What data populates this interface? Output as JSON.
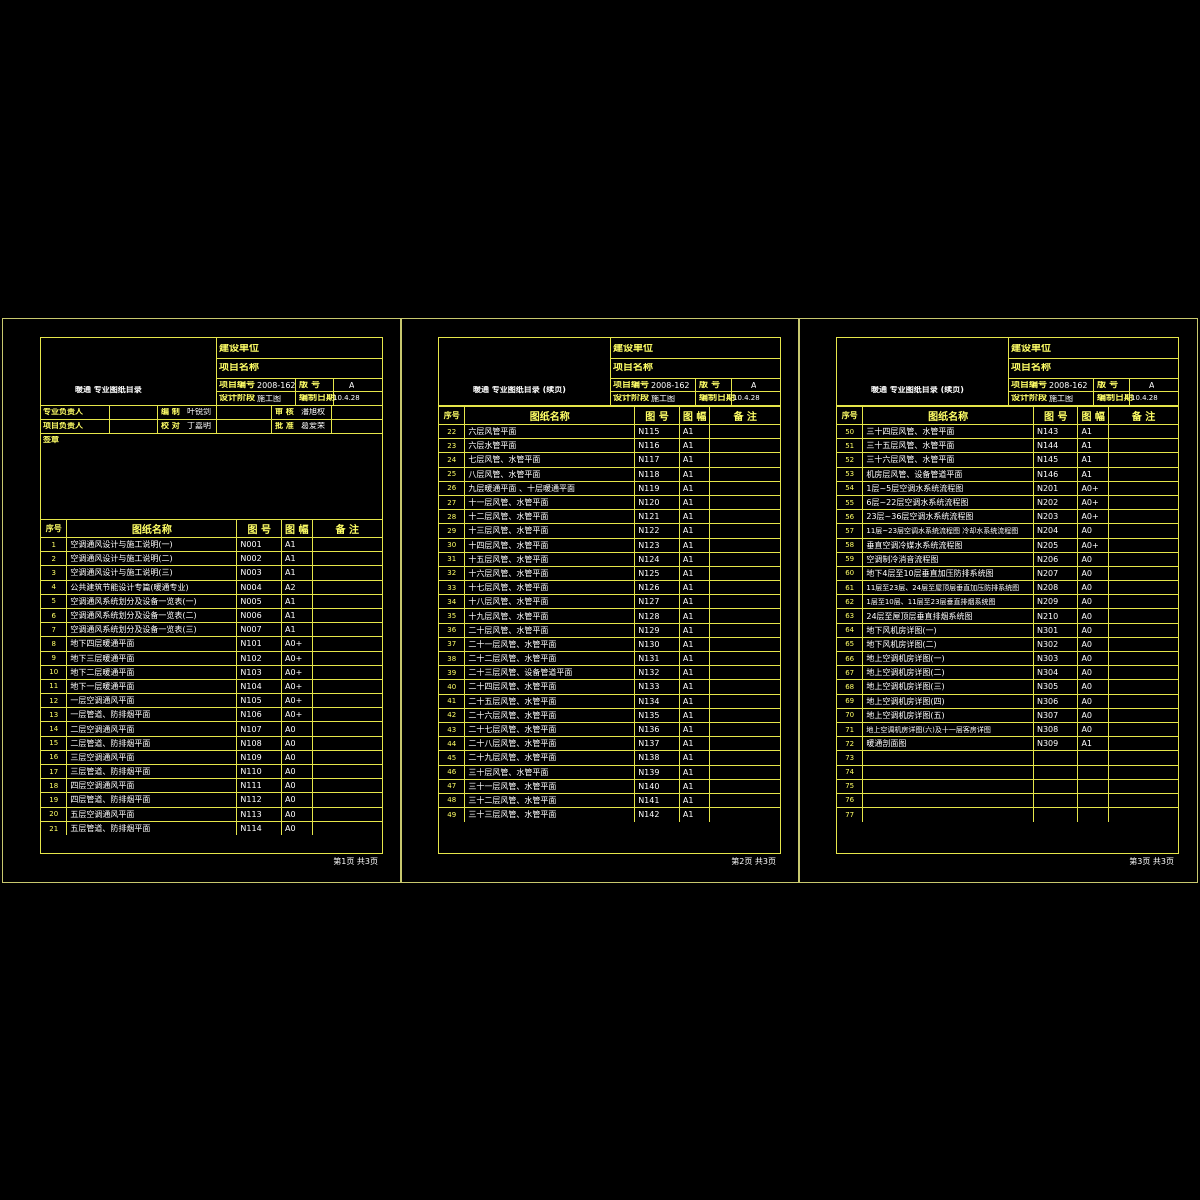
{
  "sheets": [
    {
      "construction_unit": "建设单位",
      "project_name": "项目名称",
      "title": "暖通   专业图纸目录",
      "project_no_label": "项目编号",
      "project_no": "2008-162",
      "version_label": "版   号",
      "version": "A",
      "design_stage_label": "设计阶段",
      "design_stage": "施工图",
      "date_label": "编制日期",
      "date": "10.4.28",
      "people": {
        "r1": [
          "专业负责人",
          "",
          "编   制",
          "叶锐剑",
          "审   核",
          "潘旭权"
        ],
        "r2": [
          "项目负责人",
          "",
          "校   对",
          "丁嘉明",
          "批   准",
          "葛爱荣"
        ]
      },
      "sign_label": "签章",
      "headers": [
        "序号",
        "图纸名称",
        "图 号",
        "图 幅",
        "备 注"
      ],
      "rows": [
        [
          "1",
          "空调通风设计与施工说明(一)",
          "N001",
          "A1"
        ],
        [
          "2",
          "空调通风设计与施工说明(二)",
          "N002",
          "A1"
        ],
        [
          "3",
          "空调通风设计与施工说明(三)",
          "N003",
          "A1"
        ],
        [
          "4",
          "公共建筑节能设计专篇(暖通专业)",
          "N004",
          "A2"
        ],
        [
          "5",
          "空调通风系统划分及设备一览表(一)",
          "N005",
          "A1"
        ],
        [
          "6",
          "空调通风系统划分及设备一览表(二)",
          "N006",
          "A1"
        ],
        [
          "7",
          "空调通风系统划分及设备一览表(三)",
          "N007",
          "A1"
        ],
        [
          "8",
          "地下四层暖通平面",
          "N101",
          "A0+"
        ],
        [
          "9",
          "地下三层暖通平面",
          "N102",
          "A0+"
        ],
        [
          "10",
          "地下二层暖通平面",
          "N103",
          "A0+"
        ],
        [
          "11",
          "地下一层暖通平面",
          "N104",
          "A0+"
        ],
        [
          "12",
          "一层空调通风平面",
          "N105",
          "A0+"
        ],
        [
          "13",
          "一层管道、防排烟平面",
          "N106",
          "A0+"
        ],
        [
          "14",
          "二层空调通风平面",
          "N107",
          "A0"
        ],
        [
          "15",
          "二层管道、防排烟平面",
          "N108",
          "A0"
        ],
        [
          "16",
          "三层空调通风平面",
          "N109",
          "A0"
        ],
        [
          "17",
          "三层管道、防排烟平面",
          "N110",
          "A0"
        ],
        [
          "18",
          "四层空调通风平面",
          "N111",
          "A0"
        ],
        [
          "19",
          "四层管道、防排烟平面",
          "N112",
          "A0"
        ],
        [
          "20",
          "五层空调通风平面",
          "N113",
          "A0"
        ],
        [
          "21",
          "五层管道、防排烟平面",
          "N114",
          "A0"
        ]
      ],
      "footer": "第1页   共3页"
    },
    {
      "construction_unit": "建设单位",
      "project_name": "项目名称",
      "title": "暖通   专业图纸目录 (续页)",
      "project_no_label": "项目编号",
      "project_no": "2008-162",
      "version_label": "版   号",
      "version": "A",
      "design_stage_label": "设计阶段",
      "design_stage": "施工图",
      "date_label": "编制日期",
      "date": "10.4.28",
      "headers": [
        "序号",
        "图纸名称",
        "图 号",
        "图 幅",
        "备 注"
      ],
      "rows": [
        [
          "22",
          "六层风管平面",
          "N115",
          "A1"
        ],
        [
          "23",
          "六层水管平面",
          "N116",
          "A1"
        ],
        [
          "24",
          "七层风管、水管平面",
          "N117",
          "A1"
        ],
        [
          "25",
          "八层风管、水管平面",
          "N118",
          "A1"
        ],
        [
          "26",
          "九层暖通平面 、十层暖通平面",
          "N119",
          "A1"
        ],
        [
          "27",
          "十一层风管、水管平面",
          "N120",
          "A1"
        ],
        [
          "28",
          "十二层风管、水管平面",
          "N121",
          "A1"
        ],
        [
          "29",
          "十三层风管、水管平面",
          "N122",
          "A1"
        ],
        [
          "30",
          "十四层风管、水管平面",
          "N123",
          "A1"
        ],
        [
          "31",
          "十五层风管、水管平面",
          "N124",
          "A1"
        ],
        [
          "32",
          "十六层风管、水管平面",
          "N125",
          "A1"
        ],
        [
          "33",
          "十七层风管、水管平面",
          "N126",
          "A1"
        ],
        [
          "34",
          "十八层风管、水管平面",
          "N127",
          "A1"
        ],
        [
          "35",
          "十九层风管、水管平面",
          "N128",
          "A1"
        ],
        [
          "36",
          "二十层风管、水管平面",
          "N129",
          "A1"
        ],
        [
          "37",
          "二十一层风管、水管平面",
          "N130",
          "A1"
        ],
        [
          "38",
          "二十二层风管、水管平面",
          "N131",
          "A1"
        ],
        [
          "39",
          "二十三层风管、设备管道平面",
          "N132",
          "A1"
        ],
        [
          "40",
          "二十四层风管、水管平面",
          "N133",
          "A1"
        ],
        [
          "41",
          "二十五层风管、水管平面",
          "N134",
          "A1"
        ],
        [
          "42",
          "二十六层风管、水管平面",
          "N135",
          "A1"
        ],
        [
          "43",
          "二十七层风管、水管平面",
          "N136",
          "A1"
        ],
        [
          "44",
          "二十八层风管、水管平面",
          "N137",
          "A1"
        ],
        [
          "45",
          "二十九层风管、水管平面",
          "N138",
          "A1"
        ],
        [
          "46",
          "三十层风管、水管平面",
          "N139",
          "A1"
        ],
        [
          "47",
          "三十一层风管、水管平面",
          "N140",
          "A1"
        ],
        [
          "48",
          "三十二层风管、水管平面",
          "N141",
          "A1"
        ],
        [
          "49",
          "三十三层风管、水管平面",
          "N142",
          "A1"
        ]
      ],
      "footer": "第2页   共3页"
    },
    {
      "construction_unit": "建设单位",
      "project_name": "项目名称",
      "title": "暖通   专业图纸目录 (续页)",
      "project_no_label": "项目编号",
      "project_no": "2008-162",
      "version_label": "版   号",
      "version": "A",
      "design_stage_label": "设计阶段",
      "design_stage": "施工图",
      "date_label": "编制日期",
      "date": "10.4.28",
      "headers": [
        "序号",
        "图纸名称",
        "图 号",
        "图 幅",
        "备 注"
      ],
      "rows": [
        [
          "50",
          "三十四层风管、水管平面",
          "N143",
          "A1"
        ],
        [
          "51",
          "三十五层风管、水管平面",
          "N144",
          "A1"
        ],
        [
          "52",
          "三十六层风管、水管平面",
          "N145",
          "A1"
        ],
        [
          "53",
          "机房层风管、设备管道平面",
          "N146",
          "A1"
        ],
        [
          "54",
          "1层~5层空调水系统流程图",
          "N201",
          "A0+"
        ],
        [
          "55",
          "6层~22层空调水系统流程图",
          "N202",
          "A0+"
        ],
        [
          "56",
          "23层~36层空调水系统流程图",
          "N203",
          "A0+"
        ],
        [
          "57",
          "11层~23层空调水系统流程图 冷却水系统流程图",
          "N204",
          "A0"
        ],
        [
          "58",
          "垂直空调冷媒水系统流程图",
          "N205",
          "A0+"
        ],
        [
          "59",
          "空调制冷消音流程图",
          "N206",
          "A0"
        ],
        [
          "60",
          "地下4层至10层垂直加压防排系统图",
          "N207",
          "A0"
        ],
        [
          "61",
          "11层至23层、24层至屋顶层垂直加压防排系统图",
          "N208",
          "A0"
        ],
        [
          "62",
          "1层至10层、11层至23层垂直排烟系统图",
          "N209",
          "A0"
        ],
        [
          "63",
          "24层至屋顶层垂直排烟系统图",
          "N210",
          "A0"
        ],
        [
          "64",
          "地下风机房详图(一)",
          "N301",
          "A0"
        ],
        [
          "65",
          "地下风机房详图(二)",
          "N302",
          "A0"
        ],
        [
          "66",
          "地上空调机房详图(一)",
          "N303",
          "A0"
        ],
        [
          "67",
          "地上空调机房详图(二)",
          "N304",
          "A0"
        ],
        [
          "68",
          "地上空调机房详图(三)",
          "N305",
          "A0"
        ],
        [
          "69",
          "地上空调机房详图(四)",
          "N306",
          "A0"
        ],
        [
          "70",
          "地上空调机房详图(五)",
          "N307",
          "A0"
        ],
        [
          "71",
          "地上空调机房详图(六)及十一层客房详图",
          "N308",
          "A0"
        ],
        [
          "72",
          "暖通剖面图",
          "N309",
          "A1"
        ],
        [
          "73",
          "",
          "",
          ""
        ],
        [
          "74",
          "",
          "",
          ""
        ],
        [
          "75",
          "",
          "",
          ""
        ],
        [
          "76",
          "",
          "",
          ""
        ],
        [
          "77",
          "",
          "",
          ""
        ]
      ],
      "footer": "第3页   共3页"
    }
  ],
  "colors": {
    "line": "#e6e64a",
    "label": "#ffff66",
    "text": "#ffffff",
    "frame": "#c8c86e"
  }
}
